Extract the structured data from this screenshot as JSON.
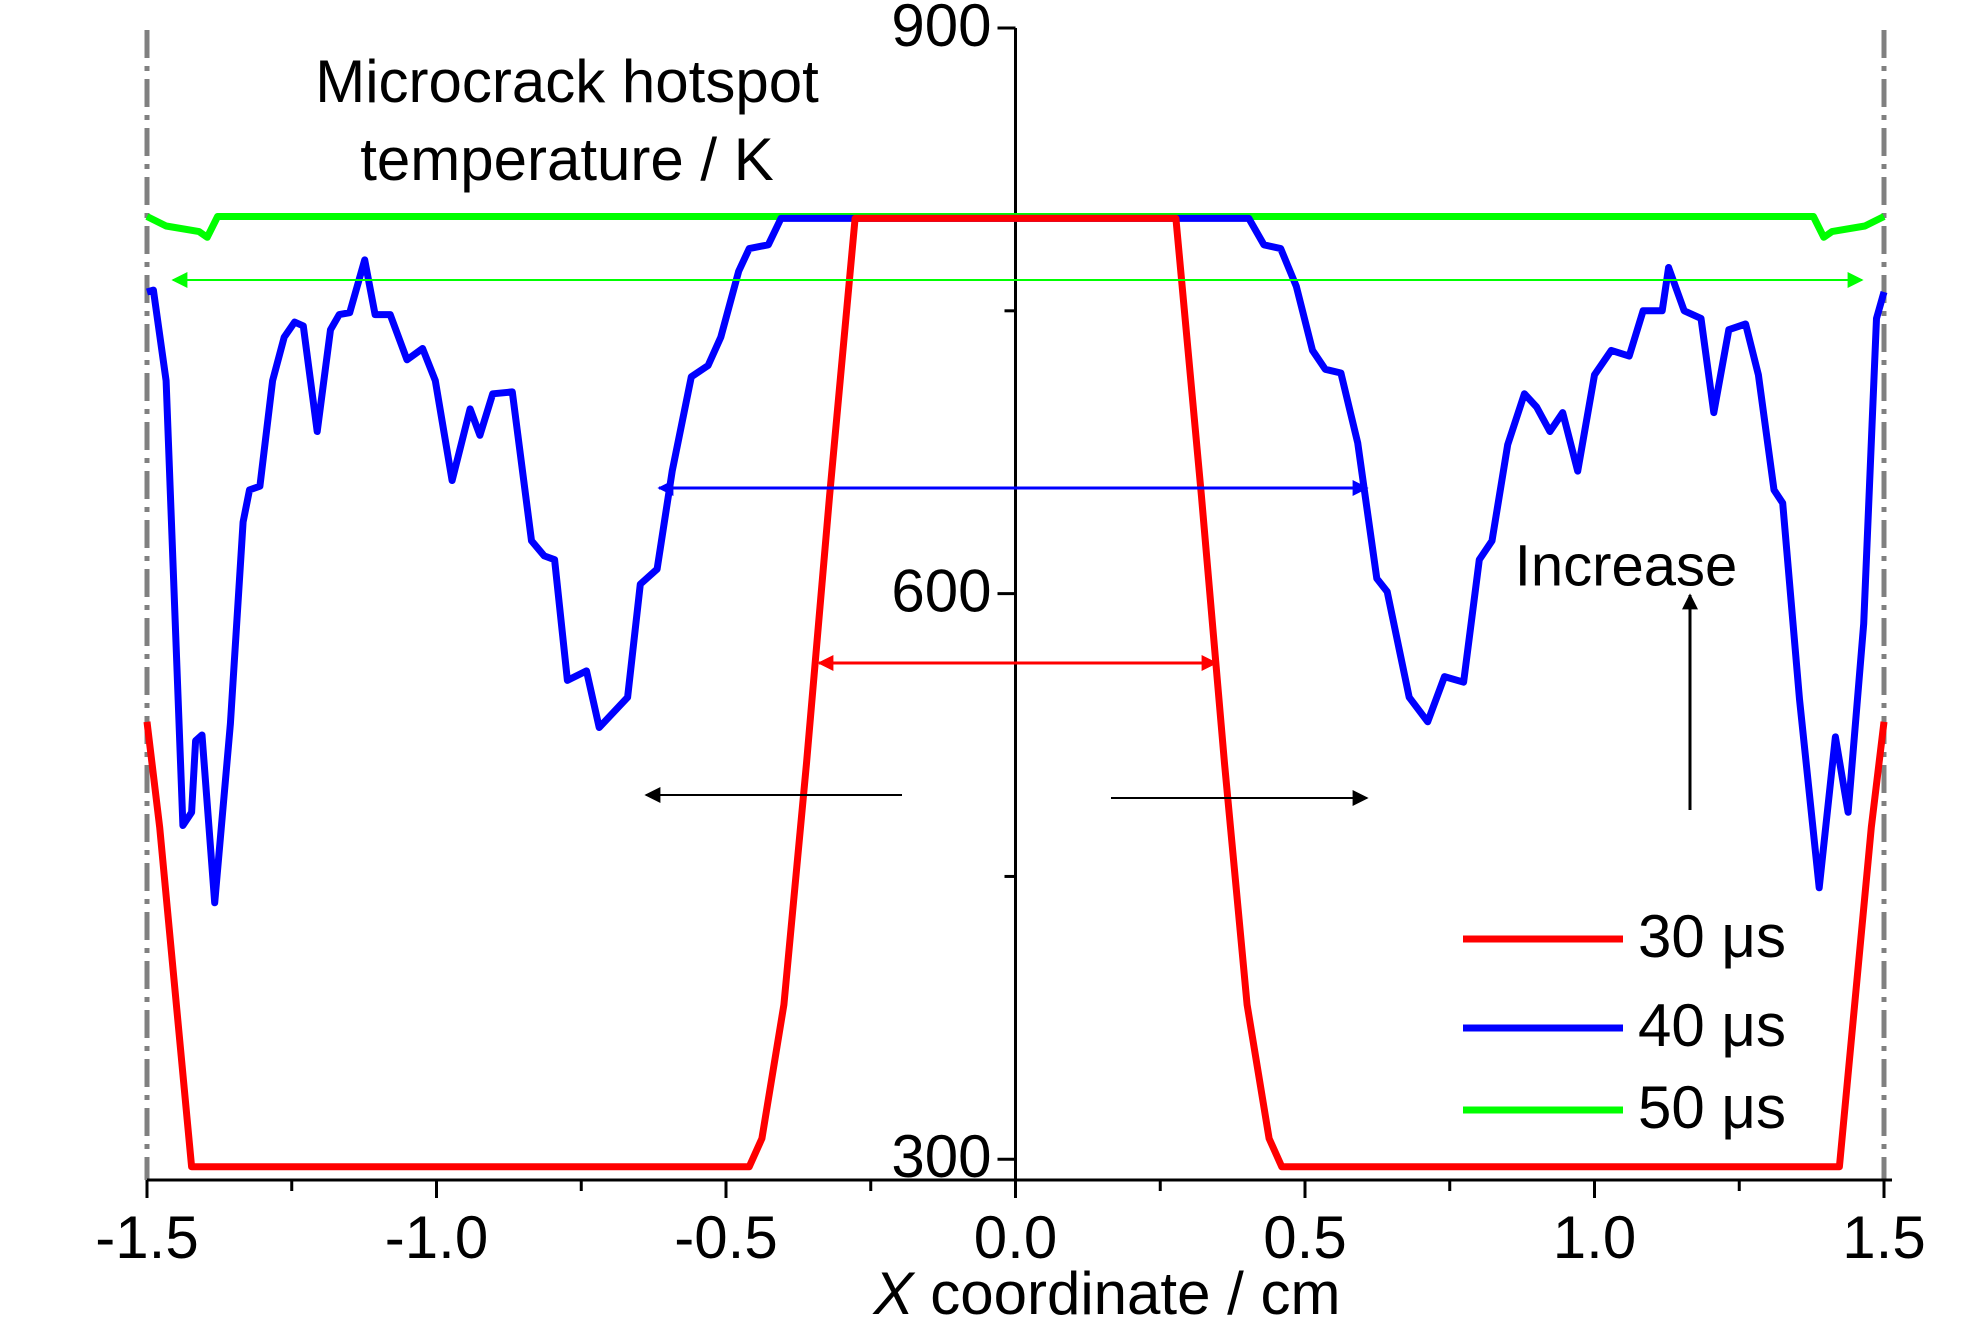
{
  "chart_data": {
    "type": "line",
    "ylabel": [
      "Microcrack hotspot",
      "temperature / K"
    ],
    "xlabel_var": "X",
    "xlabel": "coordinate / cm",
    "annotation": "Increase",
    "xlim": [
      -1.5,
      1.5
    ],
    "ylim": [
      289,
      900
    ],
    "xticks": [
      -1.5,
      {
        "value": -1.0,
        "label": "-1.0"
      },
      -0.5,
      {
        "value": 0.0,
        "label": "0.0"
      },
      0.5,
      {
        "value": 1.0,
        "label": "1.0"
      },
      1.5
    ],
    "xminor_ticks": [
      -1.25,
      -0.75,
      -0.25,
      0.25,
      0.75,
      1.25
    ],
    "yticks": [
      300,
      600,
      900
    ],
    "yminor_ticks": [
      450,
      750
    ],
    "series": [
      {
        "name": "30 μs",
        "color": "#ff0000",
        "x": [
          -1.5,
          -1.478,
          -1.423,
          -0.46,
          -0.438,
          -0.4,
          -0.361,
          -0.321,
          -0.277,
          0.27,
          0.277,
          0.321,
          0.361,
          0.4,
          0.438,
          0.46,
          1.423,
          1.478,
          1.5
        ],
        "values": [
          532,
          476,
          296,
          296,
          311,
          382,
          510,
          652,
          799,
          799,
          799,
          652,
          510,
          382,
          311,
          296,
          296,
          476,
          532
        ]
      },
      {
        "name": "40 μs",
        "color": "#0000ff",
        "x": [
          -1.5,
          -1.489,
          -1.467,
          -1.438,
          -1.423,
          -1.416,
          -1.405,
          -1.383,
          -1.356,
          -1.334,
          -1.323,
          -1.305,
          -1.283,
          -1.263,
          -1.245,
          -1.23,
          -1.206,
          -1.183,
          -1.168,
          -1.15,
          -1.124,
          -1.106,
          -1.08,
          -1.051,
          -1.024,
          -1.002,
          -0.973,
          -0.942,
          -0.925,
          -0.903,
          -0.869,
          -0.836,
          -0.814,
          -0.796,
          -0.774,
          -0.741,
          -0.719,
          -0.67,
          -0.648,
          -0.619,
          -0.593,
          -0.56,
          -0.531,
          -0.509,
          -0.478,
          -0.46,
          -0.427,
          -0.405,
          0.403,
          0.429,
          0.458,
          0.485,
          0.513,
          0.535,
          0.562,
          0.591,
          0.624,
          0.642,
          0.68,
          0.712,
          0.741,
          0.774,
          0.801,
          0.823,
          0.85,
          0.879,
          0.9,
          0.923,
          0.945,
          0.971,
          1.0,
          1.029,
          1.06,
          1.084,
          1.117,
          1.128,
          1.155,
          1.184,
          1.206,
          1.232,
          1.261,
          1.283,
          1.31,
          1.325,
          1.354,
          1.388,
          1.416,
          1.438,
          1.465,
          1.487,
          1.5
        ],
        "values": [
          760,
          761,
          713,
          477,
          484,
          522,
          525,
          436,
          531,
          638,
          655,
          657,
          713,
          736,
          744,
          742,
          686,
          740,
          748,
          749,
          777,
          748,
          748,
          724,
          730,
          713,
          660,
          698,
          684,
          706,
          707,
          628,
          620,
          618,
          554,
          559,
          529,
          545,
          605,
          613,
          665,
          715,
          721,
          736,
          771,
          783,
          785,
          799,
          799,
          785,
          783,
          763,
          729,
          719,
          717,
          680,
          608,
          601,
          545,
          532,
          556,
          553,
          618,
          628,
          679,
          706,
          699,
          686,
          696,
          665,
          716,
          729,
          726,
          750,
          750,
          773,
          750,
          746,
          696,
          740,
          743,
          716,
          655,
          648,
          544,
          444,
          524,
          484,
          584,
          746,
          760
        ]
      },
      {
        "name": "50 μs",
        "color": "#00ff00",
        "x": [
          -1.5,
          -1.467,
          -1.41,
          -1.396,
          -1.378,
          1.378,
          1.396,
          1.41,
          1.467,
          1.5
        ],
        "values": [
          800,
          795,
          792,
          789,
          800,
          800,
          789,
          792,
          795,
          800
        ]
      }
    ]
  }
}
